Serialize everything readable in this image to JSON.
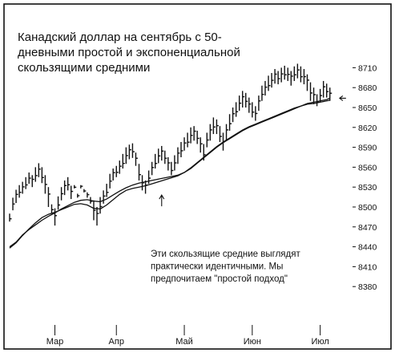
{
  "chart_data": {
    "type": "ohlc",
    "title": "Канадский доллар на сентябрь с 50-дневными простой и экспоненциальной скользящими средними",
    "title_lines": [
      "Канадский доллар на сентябрь с 50-",
      "дневными простой и экспоненциальной",
      "скользящими средними"
    ],
    "annotation_lines": [
      "Эти скользящие средние выглядят",
      "практически идентичными. Мы",
      "предпочитаем \"простой подход\""
    ],
    "xlabel": "",
    "ylabel": "",
    "ylim": [
      8350,
      8725
    ],
    "yticks": [
      8380,
      8410,
      8440,
      8470,
      8500,
      8530,
      8560,
      8590,
      8620,
      8650,
      8680,
      8710
    ],
    "x_axis": {
      "range": [
        0,
        106
      ],
      "months": [
        {
          "label": "Мар",
          "x": 14
        },
        {
          "label": "Апр",
          "x": 33
        },
        {
          "label": "Май",
          "x": 54
        },
        {
          "label": "Июн",
          "x": 75
        },
        {
          "label": "Июл",
          "x": 96
        }
      ]
    },
    "grid": false,
    "legend": "none",
    "series": [
      {
        "kind": "price-bars",
        "bars": [
          {
            "x": 0,
            "h": 8490,
            "l": 8478
          },
          {
            "x": 1,
            "h": 8514,
            "l": 8495
          },
          {
            "x": 2,
            "h": 8526,
            "l": 8506
          },
          {
            "x": 3,
            "h": 8533,
            "l": 8514
          },
          {
            "x": 4,
            "h": 8538,
            "l": 8520
          },
          {
            "x": 5,
            "h": 8545,
            "l": 8527
          },
          {
            "x": 6,
            "h": 8552,
            "l": 8535
          },
          {
            "x": 7,
            "h": 8548,
            "l": 8530
          },
          {
            "x": 8,
            "h": 8560,
            "l": 8538
          },
          {
            "x": 9,
            "h": 8566,
            "l": 8545
          },
          {
            "x": 10,
            "h": 8560,
            "l": 8536
          },
          {
            "x": 11,
            "h": 8548,
            "l": 8520
          },
          {
            "x": 12,
            "h": 8530,
            "l": 8500
          },
          {
            "x": 13,
            "h": 8504,
            "l": 8490
          },
          {
            "x": 14,
            "h": 8498,
            "l": 8472
          },
          {
            "x": 15,
            "h": 8516,
            "l": 8496
          },
          {
            "x": 16,
            "h": 8530,
            "l": 8510
          },
          {
            "x": 17,
            "h": 8540,
            "l": 8518
          },
          {
            "x": 18,
            "h": 8545,
            "l": 8525
          },
          {
            "x": 19,
            "h": 8532,
            "l": 8512
          },
          {
            "x": 20,
            "h": 8533,
            "l": 8528
          },
          {
            "x": 21,
            "h": 8520,
            "l": 8514
          },
          {
            "x": 22,
            "h": 8533,
            "l": 8528
          },
          {
            "x": 23,
            "h": 8527,
            "l": 8522
          },
          {
            "x": 24,
            "h": 8522,
            "l": 8514
          },
          {
            "x": 25,
            "h": 8515,
            "l": 8505
          },
          {
            "x": 26,
            "h": 8510,
            "l": 8480
          },
          {
            "x": 27,
            "h": 8500,
            "l": 8472
          },
          {
            "x": 28,
            "h": 8515,
            "l": 8490
          },
          {
            "x": 29,
            "h": 8525,
            "l": 8505
          },
          {
            "x": 30,
            "h": 8535,
            "l": 8515
          },
          {
            "x": 31,
            "h": 8550,
            "l": 8528
          },
          {
            "x": 32,
            "h": 8558,
            "l": 8540
          },
          {
            "x": 33,
            "h": 8562,
            "l": 8545
          },
          {
            "x": 34,
            "h": 8570,
            "l": 8550
          },
          {
            "x": 35,
            "h": 8580,
            "l": 8558
          },
          {
            "x": 36,
            "h": 8590,
            "l": 8565
          },
          {
            "x": 37,
            "h": 8594,
            "l": 8572
          },
          {
            "x": 38,
            "h": 8596,
            "l": 8574
          },
          {
            "x": 39,
            "h": 8582,
            "l": 8562
          },
          {
            "x": 40,
            "h": 8565,
            "l": 8540
          },
          {
            "x": 41,
            "h": 8548,
            "l": 8525
          },
          {
            "x": 42,
            "h": 8540,
            "l": 8520
          },
          {
            "x": 43,
            "h": 8555,
            "l": 8535
          },
          {
            "x": 44,
            "h": 8568,
            "l": 8548
          },
          {
            "x": 45,
            "h": 8580,
            "l": 8558
          },
          {
            "x": 46,
            "h": 8588,
            "l": 8566
          },
          {
            "x": 47,
            "h": 8592,
            "l": 8570
          },
          {
            "x": 48,
            "h": 8585,
            "l": 8565
          },
          {
            "x": 49,
            "h": 8575,
            "l": 8555
          },
          {
            "x": 50,
            "h": 8568,
            "l": 8548
          },
          {
            "x": 51,
            "h": 8578,
            "l": 8555
          },
          {
            "x": 52,
            "h": 8590,
            "l": 8565
          },
          {
            "x": 53,
            "h": 8598,
            "l": 8575
          },
          {
            "x": 54,
            "h": 8605,
            "l": 8585
          },
          {
            "x": 55,
            "h": 8612,
            "l": 8590
          },
          {
            "x": 56,
            "h": 8620,
            "l": 8596
          },
          {
            "x": 57,
            "h": 8622,
            "l": 8600
          },
          {
            "x": 58,
            "h": 8615,
            "l": 8595
          },
          {
            "x": 59,
            "h": 8605,
            "l": 8582
          },
          {
            "x": 60,
            "h": 8595,
            "l": 8570
          },
          {
            "x": 61,
            "h": 8612,
            "l": 8590
          },
          {
            "x": 62,
            "h": 8625,
            "l": 8600
          },
          {
            "x": 63,
            "h": 8635,
            "l": 8610
          },
          {
            "x": 64,
            "h": 8632,
            "l": 8610
          },
          {
            "x": 65,
            "h": 8622,
            "l": 8598
          },
          {
            "x": 66,
            "h": 8612,
            "l": 8585
          },
          {
            "x": 67,
            "h": 8625,
            "l": 8600
          },
          {
            "x": 68,
            "h": 8640,
            "l": 8615
          },
          {
            "x": 69,
            "h": 8650,
            "l": 8628
          },
          {
            "x": 70,
            "h": 8658,
            "l": 8636
          },
          {
            "x": 71,
            "h": 8668,
            "l": 8645
          },
          {
            "x": 72,
            "h": 8675,
            "l": 8650
          },
          {
            "x": 73,
            "h": 8672,
            "l": 8650
          },
          {
            "x": 74,
            "h": 8665,
            "l": 8642
          },
          {
            "x": 75,
            "h": 8658,
            "l": 8635
          },
          {
            "x": 76,
            "h": 8652,
            "l": 8630
          },
          {
            "x": 77,
            "h": 8668,
            "l": 8645
          },
          {
            "x": 78,
            "h": 8683,
            "l": 8660
          },
          {
            "x": 79,
            "h": 8690,
            "l": 8668
          },
          {
            "x": 80,
            "h": 8698,
            "l": 8675
          },
          {
            "x": 81,
            "h": 8702,
            "l": 8680
          },
          {
            "x": 82,
            "h": 8708,
            "l": 8686
          },
          {
            "x": 83,
            "h": 8705,
            "l": 8685
          },
          {
            "x": 84,
            "h": 8710,
            "l": 8688
          },
          {
            "x": 85,
            "h": 8713,
            "l": 8692
          },
          {
            "x": 86,
            "h": 8710,
            "l": 8690
          },
          {
            "x": 87,
            "h": 8705,
            "l": 8683
          },
          {
            "x": 88,
            "h": 8712,
            "l": 8690
          },
          {
            "x": 89,
            "h": 8716,
            "l": 8694
          },
          {
            "x": 90,
            "h": 8712,
            "l": 8688
          },
          {
            "x": 91,
            "h": 8708,
            "l": 8685
          },
          {
            "x": 92,
            "h": 8700,
            "l": 8675
          },
          {
            "x": 93,
            "h": 8688,
            "l": 8660
          },
          {
            "x": 94,
            "h": 8680,
            "l": 8655
          },
          {
            "x": 95,
            "h": 8670,
            "l": 8652
          },
          {
            "x": 96,
            "h": 8678,
            "l": 8658
          },
          {
            "x": 97,
            "h": 8690,
            "l": 8665
          },
          {
            "x": 98,
            "h": 8686,
            "l": 8665
          },
          {
            "x": 99,
            "h": 8680,
            "l": 8660
          }
        ]
      },
      {
        "kind": "moving-average",
        "points": [
          [
            0,
            8440
          ],
          [
            2,
            8447
          ],
          [
            4,
            8458
          ],
          [
            6,
            8466
          ],
          [
            8,
            8473
          ],
          [
            10,
            8480
          ],
          [
            12,
            8486
          ],
          [
            14,
            8491
          ],
          [
            16,
            8497
          ],
          [
            18,
            8502
          ],
          [
            20,
            8507
          ],
          [
            22,
            8510
          ],
          [
            24,
            8511
          ],
          [
            26,
            8509
          ],
          [
            28,
            8508
          ],
          [
            30,
            8512
          ],
          [
            32,
            8518
          ],
          [
            34,
            8524
          ],
          [
            36,
            8529
          ],
          [
            38,
            8533
          ],
          [
            40,
            8536
          ],
          [
            42,
            8538
          ],
          [
            44,
            8540
          ],
          [
            46,
            8542
          ],
          [
            48,
            8544
          ],
          [
            50,
            8546
          ],
          [
            52,
            8548
          ],
          [
            54,
            8552
          ],
          [
            56,
            8558
          ],
          [
            58,
            8566
          ],
          [
            60,
            8574
          ],
          [
            62,
            8582
          ],
          [
            64,
            8590
          ],
          [
            66,
            8597
          ],
          [
            68,
            8603
          ],
          [
            70,
            8609
          ],
          [
            72,
            8615
          ],
          [
            74,
            8620
          ],
          [
            76,
            8624
          ],
          [
            78,
            8628
          ],
          [
            80,
            8632
          ],
          [
            82,
            8636
          ],
          [
            84,
            8640
          ],
          [
            86,
            8644
          ],
          [
            88,
            8648
          ],
          [
            90,
            8652
          ],
          [
            92,
            8656
          ],
          [
            94,
            8658
          ],
          [
            96,
            8660
          ],
          [
            98,
            8662
          ],
          [
            99,
            8664
          ]
        ]
      },
      {
        "kind": "moving-average",
        "points": [
          [
            0,
            8438
          ],
          [
            2,
            8446
          ],
          [
            4,
            8457
          ],
          [
            6,
            8467
          ],
          [
            8,
            8476
          ],
          [
            10,
            8484
          ],
          [
            12,
            8489
          ],
          [
            14,
            8492
          ],
          [
            16,
            8496
          ],
          [
            18,
            8500
          ],
          [
            20,
            8504
          ],
          [
            22,
            8505
          ],
          [
            24,
            8503
          ],
          [
            26,
            8498
          ],
          [
            28,
            8497
          ],
          [
            30,
            8503
          ],
          [
            32,
            8511
          ],
          [
            34,
            8519
          ],
          [
            36,
            8525
          ],
          [
            38,
            8528
          ],
          [
            40,
            8530
          ],
          [
            42,
            8532
          ],
          [
            44,
            8535
          ],
          [
            46,
            8538
          ],
          [
            48,
            8541
          ],
          [
            50,
            8544
          ],
          [
            52,
            8547
          ],
          [
            54,
            8552
          ],
          [
            56,
            8559
          ],
          [
            58,
            8567
          ],
          [
            60,
            8575
          ],
          [
            62,
            8583
          ],
          [
            64,
            8591
          ],
          [
            66,
            8598
          ],
          [
            68,
            8604
          ],
          [
            70,
            8610
          ],
          [
            72,
            8616
          ],
          [
            74,
            8621
          ],
          [
            76,
            8625
          ],
          [
            78,
            8629
          ],
          [
            80,
            8633
          ],
          [
            82,
            8637
          ],
          [
            84,
            8641
          ],
          [
            86,
            8645
          ],
          [
            88,
            8649
          ],
          [
            90,
            8652
          ],
          [
            92,
            8655
          ],
          [
            94,
            8656
          ],
          [
            96,
            8658
          ],
          [
            98,
            8660
          ],
          [
            99,
            8661
          ]
        ]
      }
    ],
    "markers": [
      {
        "kind": "up-arrow",
        "x": 47,
        "y": 8518
      },
      {
        "kind": "left-arrow",
        "x": 102,
        "y": 8664
      }
    ]
  }
}
